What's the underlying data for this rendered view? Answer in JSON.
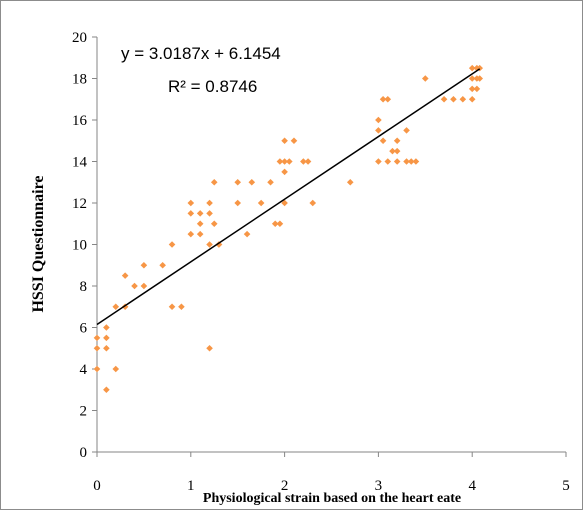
{
  "chart_data": {
    "type": "scatter",
    "xlabel": "Physiological  strain based on the heart eate",
    "ylabel": "HSSI Questionnaire",
    "xlim": [
      0,
      5
    ],
    "ylim": [
      0,
      20
    ],
    "xticks": [
      "0",
      "1",
      "2",
      "3",
      "4",
      "5"
    ],
    "yticks": [
      "0",
      "2",
      "4",
      "6",
      "8",
      "10",
      "12",
      "14",
      "16",
      "18",
      "20"
    ],
    "grid": false,
    "legend": "none",
    "marker_color": "#f79646",
    "trendline": {
      "slope": 3.0187,
      "intercept": 6.1454,
      "x_range": [
        0,
        4.08
      ],
      "color": "#000000",
      "equation_label": "y = 3.0187x + 6.1454",
      "r2_label": "R² = 0.8746"
    },
    "series": [
      {
        "points": [
          [
            0,
            4
          ],
          [
            0,
            5
          ],
          [
            0,
            5.5
          ],
          [
            0.1,
            3
          ],
          [
            0.1,
            5
          ],
          [
            0.1,
            5.5
          ],
          [
            0.1,
            6
          ],
          [
            0.2,
            4
          ],
          [
            0.2,
            7
          ],
          [
            0.3,
            7
          ],
          [
            0.3,
            8.5
          ],
          [
            0.4,
            8
          ],
          [
            0.5,
            8
          ],
          [
            0.5,
            9
          ],
          [
            0.7,
            9
          ],
          [
            0.8,
            7
          ],
          [
            0.8,
            10
          ],
          [
            0.9,
            7
          ],
          [
            1.0,
            10.5
          ],
          [
            1.0,
            11.5
          ],
          [
            1.0,
            12
          ],
          [
            1.1,
            10.5
          ],
          [
            1.1,
            11
          ],
          [
            1.1,
            11.5
          ],
          [
            1.2,
            5
          ],
          [
            1.2,
            10
          ],
          [
            1.2,
            11.5
          ],
          [
            1.2,
            12
          ],
          [
            1.25,
            11
          ],
          [
            1.25,
            13
          ],
          [
            1.3,
            10
          ],
          [
            1.3,
            10
          ],
          [
            1.5,
            12
          ],
          [
            1.5,
            13
          ],
          [
            1.6,
            10.5
          ],
          [
            1.65,
            13
          ],
          [
            1.75,
            12
          ],
          [
            1.85,
            13
          ],
          [
            1.9,
            11
          ],
          [
            1.95,
            11
          ],
          [
            1.95,
            14
          ],
          [
            2.0,
            14
          ],
          [
            2.0,
            15
          ],
          [
            2.0,
            12
          ],
          [
            2.0,
            13.5
          ],
          [
            2.05,
            14
          ],
          [
            2.1,
            15
          ],
          [
            2.2,
            14
          ],
          [
            2.25,
            14
          ],
          [
            2.3,
            12
          ],
          [
            2.7,
            13
          ],
          [
            3.0,
            14
          ],
          [
            3.0,
            15.5
          ],
          [
            3.0,
            16
          ],
          [
            3.05,
            17
          ],
          [
            3.05,
            15
          ],
          [
            3.1,
            17
          ],
          [
            3.1,
            14
          ],
          [
            3.15,
            14.5
          ],
          [
            3.2,
            14
          ],
          [
            3.2,
            14.5
          ],
          [
            3.2,
            15
          ],
          [
            3.3,
            14
          ],
          [
            3.3,
            15.5
          ],
          [
            3.35,
            14
          ],
          [
            3.4,
            14
          ],
          [
            3.5,
            18
          ],
          [
            3.7,
            17
          ],
          [
            3.8,
            17
          ],
          [
            3.9,
            17
          ],
          [
            4.0,
            17
          ],
          [
            4.0,
            17.5
          ],
          [
            4.0,
            18
          ],
          [
            4.0,
            18.5
          ],
          [
            4.05,
            17.5
          ],
          [
            4.05,
            18
          ],
          [
            4.05,
            18.5
          ],
          [
            4.08,
            18
          ],
          [
            4.08,
            18.5
          ]
        ]
      }
    ]
  }
}
